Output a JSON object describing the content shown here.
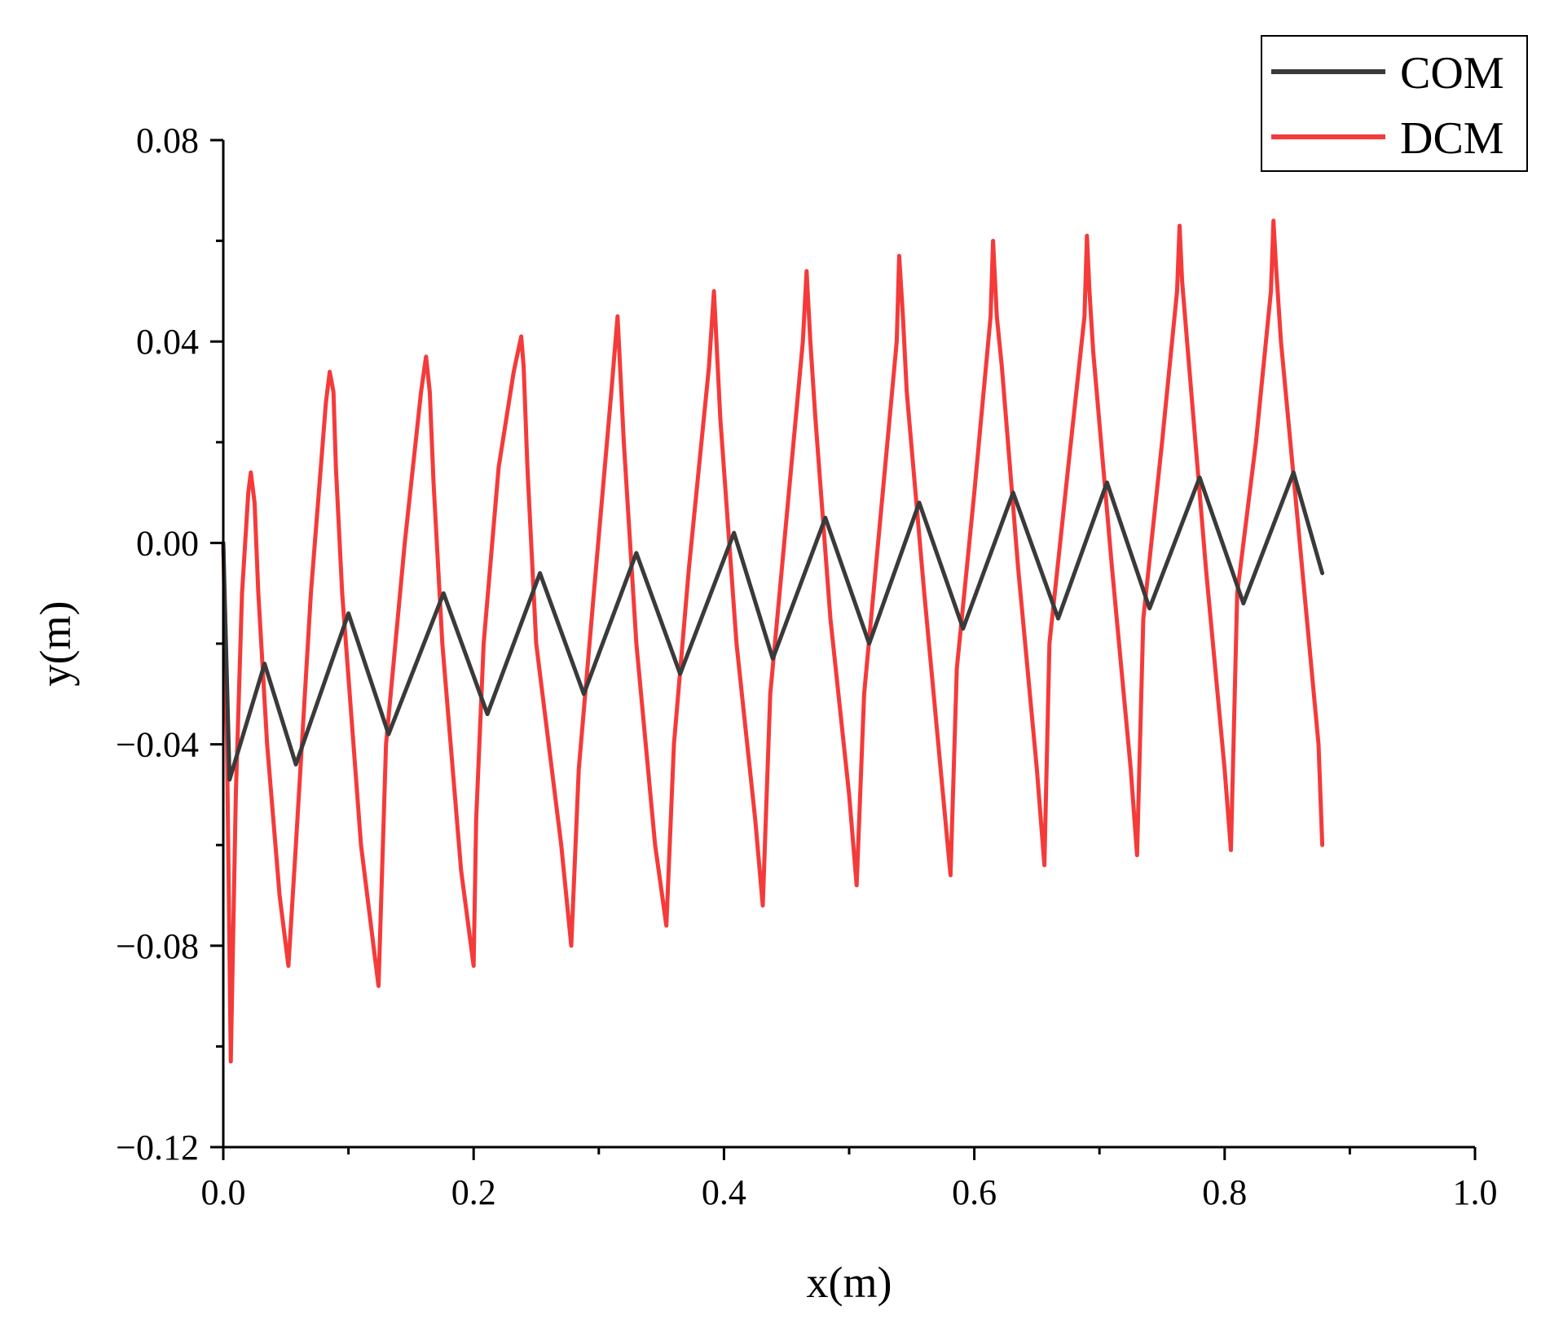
{
  "colors": {
    "com": "#3a3a3a",
    "dcm": "#f53a3a",
    "axis": "#000000"
  },
  "chart_data": {
    "type": "line",
    "xlabel": "x(m)",
    "ylabel": "y(m)",
    "xlim": [
      0.0,
      1.0
    ],
    "ylim": [
      -0.12,
      0.08
    ],
    "x_ticks": [
      0.0,
      0.2,
      0.4,
      0.6,
      0.8,
      1.0
    ],
    "x_tick_labels": [
      "0.0",
      "0.2",
      "0.4",
      "0.6",
      "0.8",
      "1.0"
    ],
    "y_ticks": [
      -0.12,
      -0.08,
      -0.04,
      0.0,
      0.04,
      0.08
    ],
    "y_tick_labels": [
      "−0.12",
      "−0.08",
      "−0.04",
      "0.00",
      "0.04",
      "0.08"
    ],
    "grid": false,
    "legend_position": "top-right",
    "series": [
      {
        "name": "COM",
        "color": "#3a3a3a",
        "x": [
          0.0,
          0.005,
          0.033,
          0.058,
          0.1,
          0.132,
          0.176,
          0.211,
          0.253,
          0.288,
          0.33,
          0.365,
          0.408,
          0.439,
          0.481,
          0.516,
          0.556,
          0.591,
          0.631,
          0.667,
          0.706,
          0.74,
          0.78,
          0.815,
          0.855,
          0.878
        ],
        "y": [
          0.0,
          -0.047,
          -0.024,
          -0.044,
          -0.014,
          -0.038,
          -0.01,
          -0.034,
          -0.006,
          -0.03,
          -0.002,
          -0.026,
          0.002,
          -0.023,
          0.005,
          -0.02,
          0.008,
          -0.017,
          0.01,
          -0.015,
          0.012,
          -0.013,
          0.013,
          -0.012,
          0.014,
          -0.006
        ]
      },
      {
        "name": "DCM",
        "color": "#f53a3a",
        "x": [
          0.0,
          0.003,
          0.006,
          0.01,
          0.015,
          0.02,
          0.022,
          0.025,
          0.028,
          0.035,
          0.045,
          0.052,
          0.058,
          0.07,
          0.082,
          0.085,
          0.088,
          0.09,
          0.095,
          0.11,
          0.12,
          0.124,
          0.13,
          0.145,
          0.158,
          0.162,
          0.165,
          0.168,
          0.175,
          0.19,
          0.2,
          0.202,
          0.208,
          0.22,
          0.232,
          0.238,
          0.24,
          0.243,
          0.25,
          0.27,
          0.278,
          0.284,
          0.296,
          0.31,
          0.315,
          0.317,
          0.32,
          0.33,
          0.345,
          0.354,
          0.36,
          0.372,
          0.388,
          0.392,
          0.394,
          0.397,
          0.41,
          0.425,
          0.431,
          0.437,
          0.45,
          0.463,
          0.466,
          0.469,
          0.473,
          0.485,
          0.5,
          0.506,
          0.512,
          0.525,
          0.538,
          0.54,
          0.543,
          0.546,
          0.56,
          0.575,
          0.581,
          0.586,
          0.6,
          0.613,
          0.615,
          0.618,
          0.622,
          0.635,
          0.65,
          0.656,
          0.66,
          0.675,
          0.688,
          0.69,
          0.692,
          0.695,
          0.71,
          0.725,
          0.73,
          0.735,
          0.75,
          0.762,
          0.764,
          0.766,
          0.77,
          0.785,
          0.8,
          0.805,
          0.81,
          0.825,
          0.837,
          0.839,
          0.841,
          0.845,
          0.86,
          0.875,
          0.878
        ],
        "y": [
          0.0,
          -0.04,
          -0.103,
          -0.05,
          -0.01,
          0.01,
          0.014,
          0.008,
          -0.01,
          -0.04,
          -0.07,
          -0.084,
          -0.06,
          -0.01,
          0.028,
          0.034,
          0.03,
          0.015,
          -0.01,
          -0.06,
          -0.08,
          -0.088,
          -0.04,
          0.0,
          0.03,
          0.037,
          0.03,
          0.012,
          -0.02,
          -0.065,
          -0.084,
          -0.055,
          -0.02,
          0.015,
          0.034,
          0.041,
          0.035,
          0.015,
          -0.02,
          -0.06,
          -0.08,
          -0.045,
          -0.01,
          0.03,
          0.045,
          0.035,
          0.02,
          -0.02,
          -0.06,
          -0.076,
          -0.04,
          -0.005,
          0.035,
          0.05,
          0.04,
          0.025,
          -0.02,
          -0.055,
          -0.072,
          -0.03,
          0.005,
          0.04,
          0.054,
          0.04,
          0.025,
          -0.015,
          -0.05,
          -0.068,
          -0.03,
          0.005,
          0.04,
          0.057,
          0.045,
          0.03,
          -0.01,
          -0.05,
          -0.066,
          -0.025,
          0.01,
          0.045,
          0.06,
          0.045,
          0.035,
          -0.005,
          -0.045,
          -0.064,
          -0.02,
          0.015,
          0.045,
          0.061,
          0.05,
          0.038,
          -0.005,
          -0.045,
          -0.062,
          -0.015,
          0.02,
          0.05,
          0.063,
          0.052,
          0.04,
          -0.005,
          -0.045,
          -0.061,
          -0.01,
          0.02,
          0.05,
          0.064,
          0.055,
          0.04,
          0.0,
          -0.04,
          -0.06
        ]
      }
    ]
  }
}
